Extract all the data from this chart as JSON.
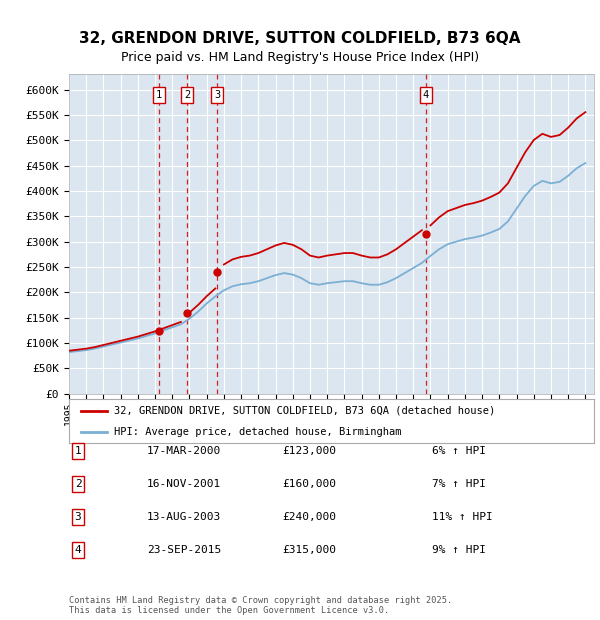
{
  "title_line1": "32, GRENDON DRIVE, SUTTON COLDFIELD, B73 6QA",
  "title_line2": "Price paid vs. HM Land Registry's House Price Index (HPI)",
  "plot_bg_color": "#dce6f0",
  "red_line_label": "32, GRENDON DRIVE, SUTTON COLDFIELD, B73 6QA (detached house)",
  "blue_line_label": "HPI: Average price, detached house, Birmingham",
  "transactions": [
    {
      "num": 1,
      "date": "17-MAR-2000",
      "year": 2000.21,
      "price": 123000,
      "pct": "6%",
      "dir": "↑"
    },
    {
      "num": 2,
      "date": "16-NOV-2001",
      "year": 2001.88,
      "price": 160000,
      "pct": "7%",
      "dir": "↑"
    },
    {
      "num": 3,
      "date": "13-AUG-2003",
      "year": 2003.62,
      "price": 240000,
      "pct": "11%",
      "dir": "↑"
    },
    {
      "num": 4,
      "date": "23-SEP-2015",
      "year": 2015.73,
      "price": 315000,
      "pct": "9%",
      "dir": "↑"
    }
  ],
  "yticks": [
    0,
    50000,
    100000,
    150000,
    200000,
    250000,
    300000,
    350000,
    400000,
    450000,
    500000,
    550000,
    600000
  ],
  "xlim_start": 1995,
  "xlim_end": 2025.5,
  "footer": "Contains HM Land Registry data © Crown copyright and database right 2025.\nThis data is licensed under the Open Government Licence v3.0.",
  "red_color": "#cc0000",
  "blue_color": "#7bafd4",
  "vline_color": "#cc0000",
  "grid_color": "#ffffff",
  "box_color": "#cc0000"
}
